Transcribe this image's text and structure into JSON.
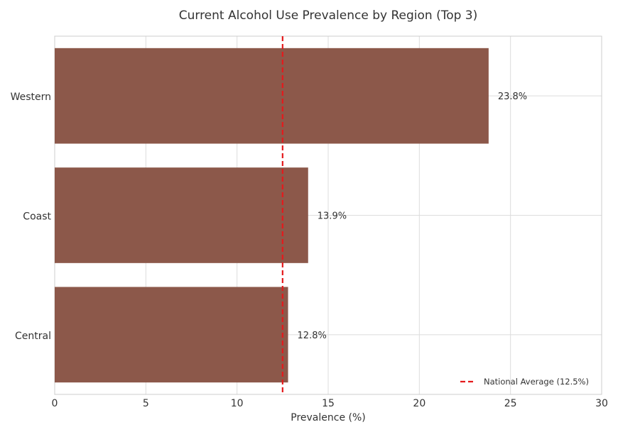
{
  "chart_data": {
    "type": "bar",
    "orientation": "horizontal",
    "title": "Current Alcohol Use Prevalence by Region (Top 3)",
    "xlabel": "Prevalence (%)",
    "ylabel": "",
    "categories": [
      "Western",
      "Coast",
      "Central"
    ],
    "values": [
      23.8,
      13.9,
      12.8
    ],
    "data_labels": [
      "23.8%",
      "13.9%",
      "12.8%"
    ],
    "xlim": [
      0,
      30
    ],
    "xticks": [
      0,
      5,
      10,
      15,
      20,
      25,
      30
    ],
    "grid": true,
    "bar_color": "#8c584a",
    "reference_line": {
      "value": 12.5,
      "label": "National Average (12.5%)",
      "color": "#e41a1c",
      "style": "dashed"
    },
    "legend": {
      "position": "bottom-right",
      "entries": [
        "National Average (12.5%)"
      ]
    }
  }
}
